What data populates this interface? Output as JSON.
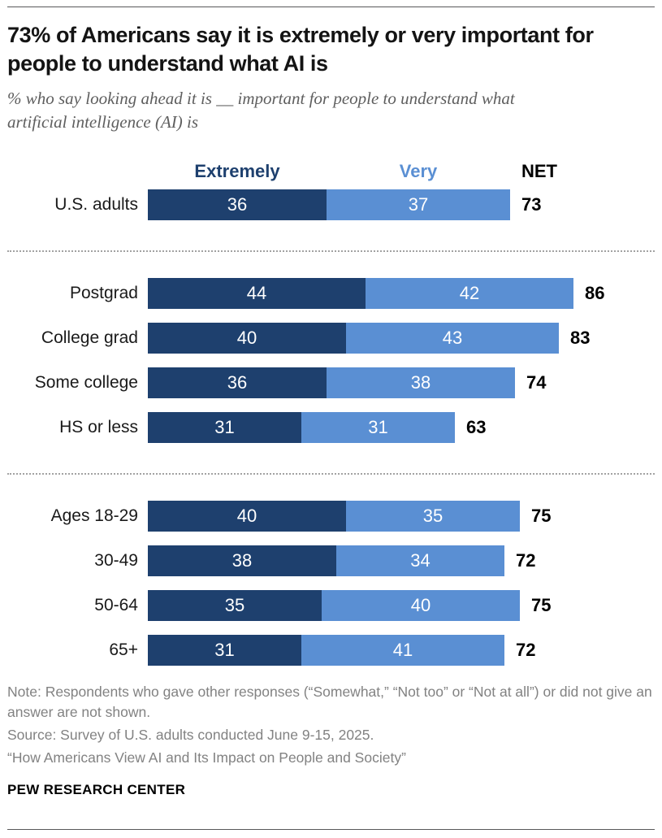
{
  "header": {
    "title": "73% of Americans say it is extremely or very important for people to understand what AI is",
    "subtitle": "% who say looking ahead it is __ important for people to understand what artificial intelligence (AI) is"
  },
  "chart_data": {
    "type": "bar",
    "variant": "horizontal-stacked",
    "unit": "percent",
    "xlim": [
      0,
      100
    ],
    "legend": {
      "position": "top",
      "extremely": "Extremely",
      "very": "Very",
      "net": "NET"
    },
    "colors": {
      "extremely": "#1e406e",
      "very": "#5a8fd3",
      "net_text": "#000000",
      "value_label": "#ffffff"
    },
    "series_names": [
      "Extremely",
      "Very"
    ],
    "groups": [
      {
        "name": "overall",
        "rows": [
          {
            "label": "U.S. adults",
            "extremely": 36,
            "very": 37,
            "net": 73
          }
        ]
      },
      {
        "name": "education",
        "rows": [
          {
            "label": "Postgrad",
            "extremely": 44,
            "very": 42,
            "net": 86
          },
          {
            "label": "College grad",
            "extremely": 40,
            "very": 43,
            "net": 83
          },
          {
            "label": "Some college",
            "extremely": 36,
            "very": 38,
            "net": 74
          },
          {
            "label": "HS or less",
            "extremely": 31,
            "very": 31,
            "net": 63
          }
        ]
      },
      {
        "name": "age",
        "rows": [
          {
            "label": "Ages 18-29",
            "extremely": 40,
            "very": 35,
            "net": 75
          },
          {
            "label": "30-49",
            "extremely": 38,
            "very": 34,
            "net": 72
          },
          {
            "label": "50-64",
            "extremely": 35,
            "very": 40,
            "net": 75
          },
          {
            "label": "65+",
            "extremely": 31,
            "very": 41,
            "net": 72
          }
        ]
      }
    ]
  },
  "footer": {
    "note": "Note: Respondents who gave other responses (“Somewhat,” “Not too” or “Not at all”) or did not give an answer are not shown.",
    "source": "Source: Survey of U.S. adults conducted June 9-15, 2025.",
    "quote": "“How Americans View AI and Its Impact on People and Society”",
    "brand": "PEW RESEARCH CENTER"
  }
}
